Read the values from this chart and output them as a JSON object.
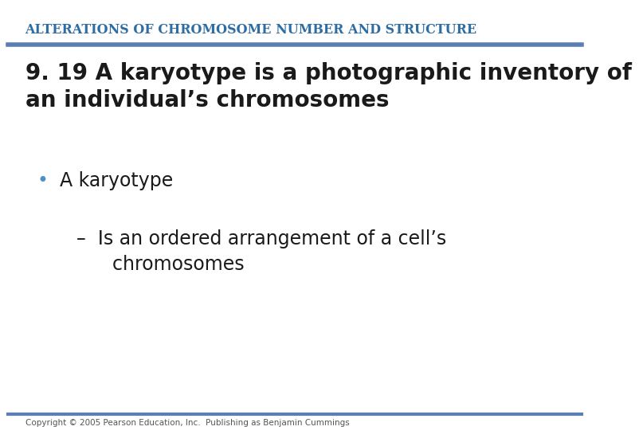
{
  "header_text": "ALTERATIONS OF CHROMOSOME NUMBER AND STRUCTURE",
  "header_color": "#2E6DA4",
  "header_line_color": "#5B7FB5",
  "header_fontsize": 11.5,
  "title_text": "9. 19 A karyotype is a photographic inventory of\nan individual’s chromosomes",
  "title_fontsize": 20,
  "title_color": "#1a1a1a",
  "bullet1": "A karyotype",
  "bullet1_color": "#4a90c4",
  "bullet1_fontsize": 17,
  "sub_bullet_dash": "–",
  "sub_bullet1_line1": "Is an ordered arrangement of a cell’s",
  "sub_bullet1_line2": "chromosomes",
  "sub_bullet_fontsize": 17,
  "sub_bullet_color": "#1a1a1a",
  "footer_text": "Copyright © 2005 Pearson Education, Inc.  Publishing as Benjamin Cummings",
  "footer_color": "#555555",
  "footer_fontsize": 7.5,
  "footer_line_color": "#5B7FB5",
  "bg_color": "#ffffff"
}
